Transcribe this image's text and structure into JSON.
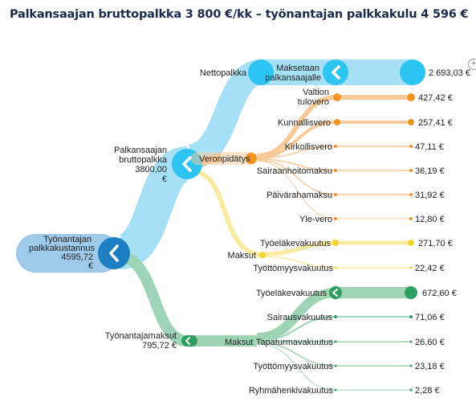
{
  "title": "Palkansaajan bruttopalkka 3 800 €/kk – työnantajan palkkakulu 4 596 €",
  "expand_icon": "zoom-expand-icon",
  "colors": {
    "blue": "#2ec4f1",
    "blue_light": "#a6e0f6",
    "dark_blue": "#1d7ec2",
    "root_bg": "#9ec9e8",
    "orange": "#f39323",
    "orange_light": "#f8c998",
    "yellow": "#f2d52c",
    "yellow_light": "#faeaa0",
    "green": "#2e9e5e",
    "green_light": "#9fd3b6"
  },
  "nodes": {
    "root": {
      "label_lines": [
        "Työnantajan",
        "palkkakustannus",
        "4595,72",
        "€"
      ]
    },
    "gross": {
      "label_lines": [
        "Palkansaajan",
        "bruttopalkka",
        "3800,00",
        "€"
      ]
    },
    "employer_fees": {
      "label_lines": [
        "Työnantajamaksut",
        "795,72 €"
      ]
    },
    "net": {
      "label": "Nettopalkka"
    },
    "withholding": {
      "label": "Veronpidätys"
    },
    "payments": {
      "label": "Maksut"
    },
    "payments_green": {
      "label": "Maksut"
    },
    "paid_to_employee": {
      "label_lines": [
        "Maksetaan",
        "palkansaajalle"
      ]
    }
  },
  "leaves": {
    "net_paid": {
      "value": "2 693,03 €"
    },
    "tax": [
      {
        "label_lines": [
          "Valtion",
          "tulovero"
        ],
        "value": "427,42 €"
      },
      {
        "label_lines": [
          "Kunnallisvero"
        ],
        "value": "257,41 €"
      },
      {
        "label_lines": [
          "Kirkollisvero"
        ],
        "value": "47,11 €"
      },
      {
        "label_lines": [
          "Sairaanhoitomaksu"
        ],
        "value": "36,19 €"
      },
      {
        "label_lines": [
          "Päivärahamaksu"
        ],
        "value": "31,92 €"
      },
      {
        "label_lines": [
          "Yle-vero"
        ],
        "value": "12,80 €"
      }
    ],
    "employee_payments": [
      {
        "label": "Työeläkevakuutus",
        "value": "271,70 €"
      },
      {
        "label": "Työttömyysvakuutus",
        "value": "22,42 €"
      }
    ],
    "employer_payments": [
      {
        "label": "Työeläkevakuutus",
        "value": "672,60 €"
      },
      {
        "label": "Sairausvakuutus",
        "value": "71,06 €"
      },
      {
        "label": "Tapaturmavakuutus",
        "value": "26,60 €"
      },
      {
        "label": "Työttömyysvakuutus",
        "value": "23,18 €"
      },
      {
        "label": "Ryhmähenkivakuutus",
        "value": "2,28 €"
      }
    ]
  }
}
